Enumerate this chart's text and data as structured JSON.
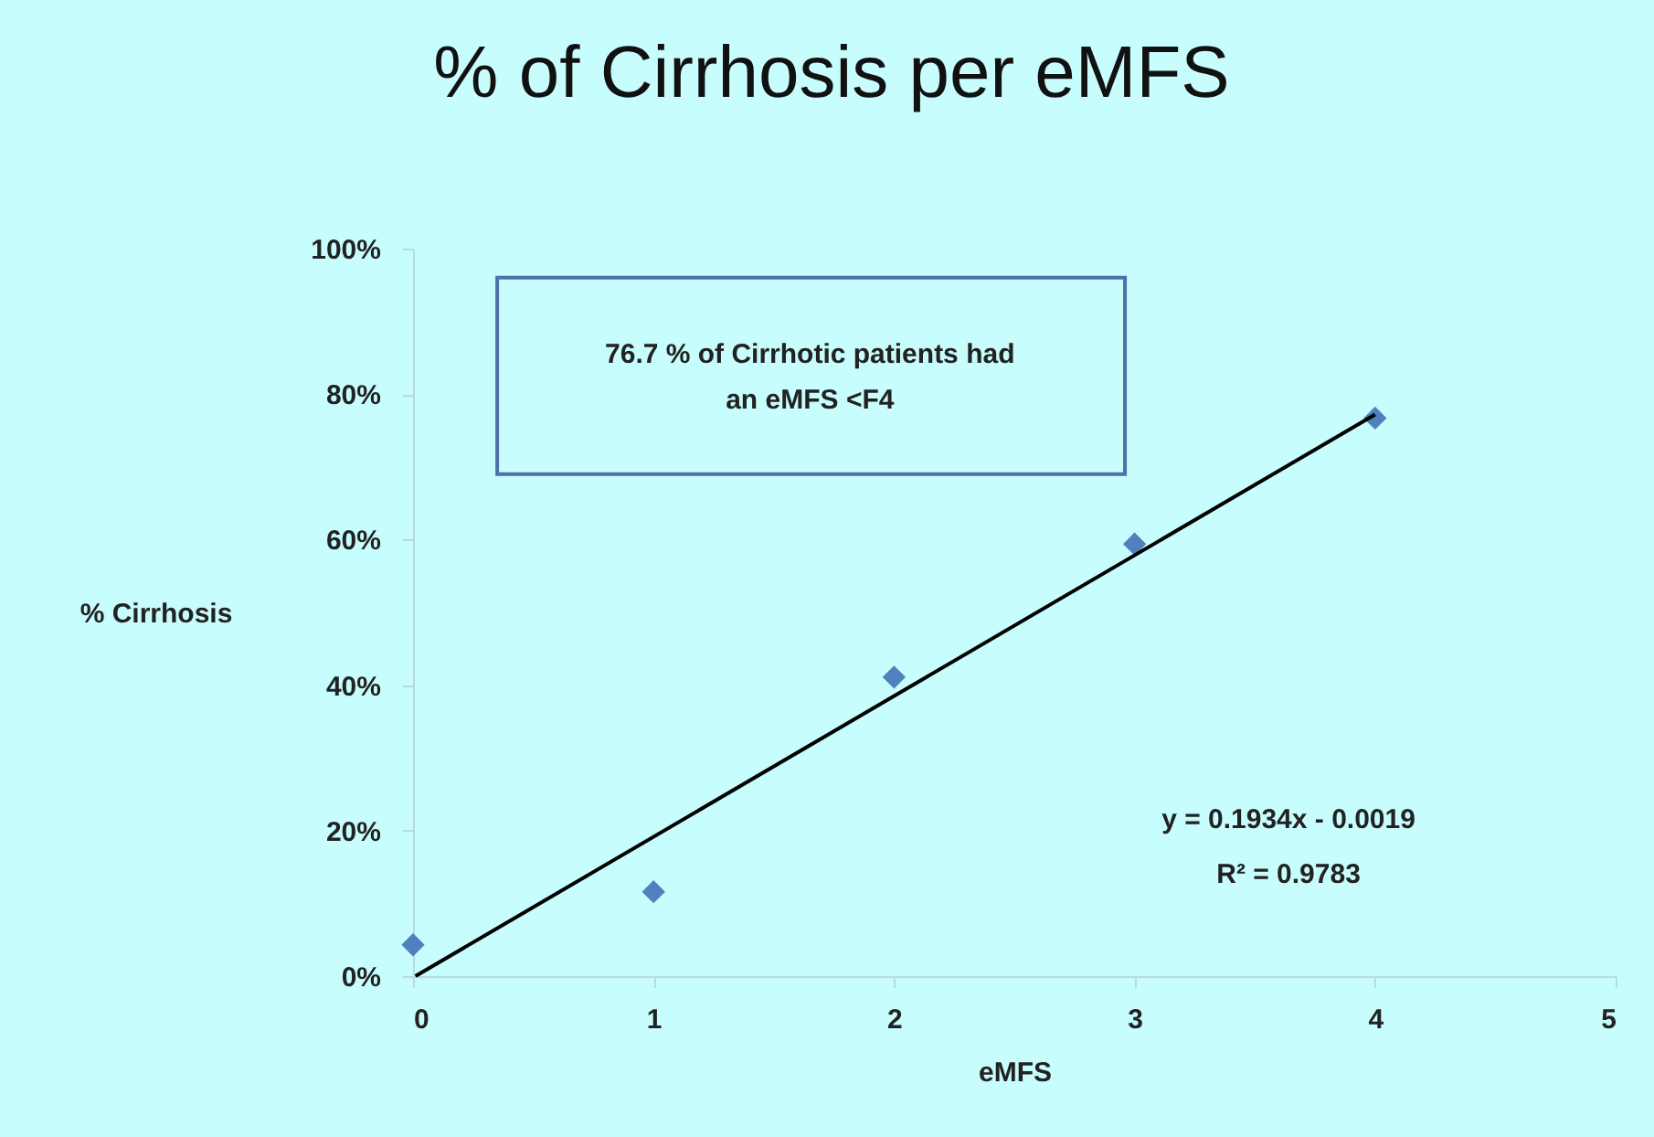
{
  "chart_data": {
    "type": "scatter",
    "title": "% of Cirrhosis per eMFS",
    "xlabel": "eMFS",
    "ylabel": "% Cirrhosis",
    "x": [
      0,
      1,
      2,
      3,
      4
    ],
    "series": [
      {
        "color": "#4f81bd",
        "marker": "diamond",
        "values": [
          4.3,
          11.6,
          41.1,
          59.4,
          76.7
        ]
      },
      {
        "type": "line",
        "color": "#000000",
        "marker": "none",
        "line_style": "solid",
        "x": [
          0.01,
          4
        ],
        "values": [
          0,
          77.2
        ]
      }
    ],
    "xlim": [
      0,
      5
    ],
    "xticks": [
      0,
      1,
      2,
      3,
      4,
      5
    ],
    "ylim": [
      0,
      100
    ],
    "yticks": [
      {
        "value": 0,
        "label": "0%"
      },
      {
        "value": 20,
        "label": "20%"
      },
      {
        "value": 40,
        "label": "40%"
      },
      {
        "value": 60,
        "label": "60%"
      },
      {
        "value": 80,
        "label": "80%"
      },
      {
        "value": 100,
        "label": "100%"
      }
    ],
    "annotations": [
      "76.7 % of Cirrhotic patients  had an eMFS <F4",
      "y = 0.1934x - 0.0019",
      "R² = 0.9783"
    ],
    "grid": false
  }
}
